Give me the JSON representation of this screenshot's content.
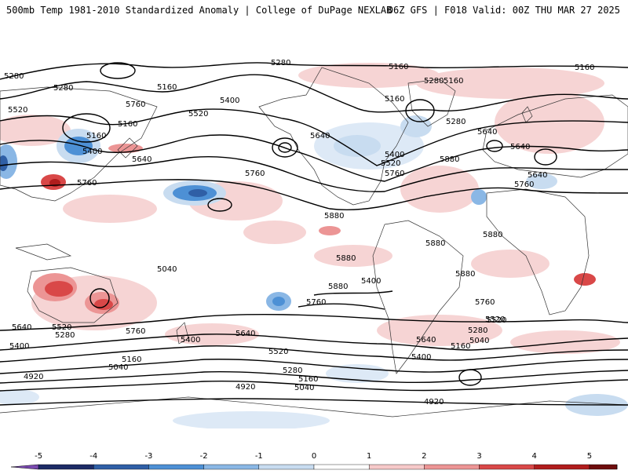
{
  "header": {
    "title_left": "500mb Temp 1981-2010 Standardized Anomaly | College of DuPage NEXLAB",
    "title_right": "06Z GFS | F018 Valid: 00Z THU MAR 27 2025"
  },
  "colorbar": {
    "ticks": [
      {
        "label": "-5",
        "value": -5
      },
      {
        "label": "-4",
        "value": -4
      },
      {
        "label": "-3",
        "value": -3
      },
      {
        "label": "-2",
        "value": -2
      },
      {
        "label": "-1",
        "value": -1
      },
      {
        "label": "0",
        "value": 0
      },
      {
        "label": "1",
        "value": 1
      },
      {
        "label": "2",
        "value": 2
      },
      {
        "label": "3",
        "value": 3
      },
      {
        "label": "4",
        "value": 4
      },
      {
        "label": "5",
        "value": 5
      }
    ],
    "colors": [
      "#1d2b66",
      "#2f5fa6",
      "#4d90d5",
      "#8ab7e5",
      "#c8dcf0",
      "#ffffff",
      "#ffffff",
      "#f6c9c9",
      "#ec9595",
      "#d94848",
      "#b01d1d",
      "#6e0d0d",
      "#f2b830"
    ],
    "low_end_color": "#7a4ab0",
    "high_end_color": "#f2b830"
  },
  "contour_labels": [
    {
      "text": "5280"
    },
    {
      "text": "5160"
    },
    {
      "text": "5160"
    },
    {
      "text": "5160"
    },
    {
      "text": "5280"
    },
    {
      "text": "5280"
    },
    {
      "text": "5520"
    },
    {
      "text": "5400"
    },
    {
      "text": "5160"
    },
    {
      "text": "5520"
    },
    {
      "text": "5400"
    },
    {
      "text": "5640"
    },
    {
      "text": "5760"
    },
    {
      "text": "5760"
    },
    {
      "text": "5640"
    },
    {
      "text": "5160"
    },
    {
      "text": "5280"
    },
    {
      "text": "5640"
    },
    {
      "text": "5400"
    },
    {
      "text": "5520"
    },
    {
      "text": "5760"
    },
    {
      "text": "5880"
    },
    {
      "text": "5640"
    },
    {
      "text": "5760"
    },
    {
      "text": "5880"
    },
    {
      "text": "5880"
    },
    {
      "text": "5880"
    },
    {
      "text": "5880"
    },
    {
      "text": "5880"
    },
    {
      "text": "5880"
    },
    {
      "text": "5760"
    },
    {
      "text": "5760"
    },
    {
      "text": "5640"
    },
    {
      "text": "5520"
    },
    {
      "text": "5760"
    },
    {
      "text": "5400"
    },
    {
      "text": "5640"
    },
    {
      "text": "5520"
    },
    {
      "text": "5280"
    },
    {
      "text": "5400"
    },
    {
      "text": "5160"
    },
    {
      "text": "5040"
    },
    {
      "text": "5520"
    },
    {
      "text": "5640"
    },
    {
      "text": "5280"
    },
    {
      "text": "5160"
    },
    {
      "text": "5040"
    },
    {
      "text": "4920"
    },
    {
      "text": "5400"
    },
    {
      "text": "5280"
    },
    {
      "text": "5160"
    },
    {
      "text": "5040"
    },
    {
      "text": "5640"
    },
    {
      "text": "5520"
    },
    {
      "text": "5400"
    },
    {
      "text": "5280"
    },
    {
      "text": "5160"
    },
    {
      "text": "5040"
    },
    {
      "text": "4920"
    },
    {
      "text": "4920"
    },
    {
      "text": "5760"
    },
    {
      "text": "5160"
    }
  ]
}
